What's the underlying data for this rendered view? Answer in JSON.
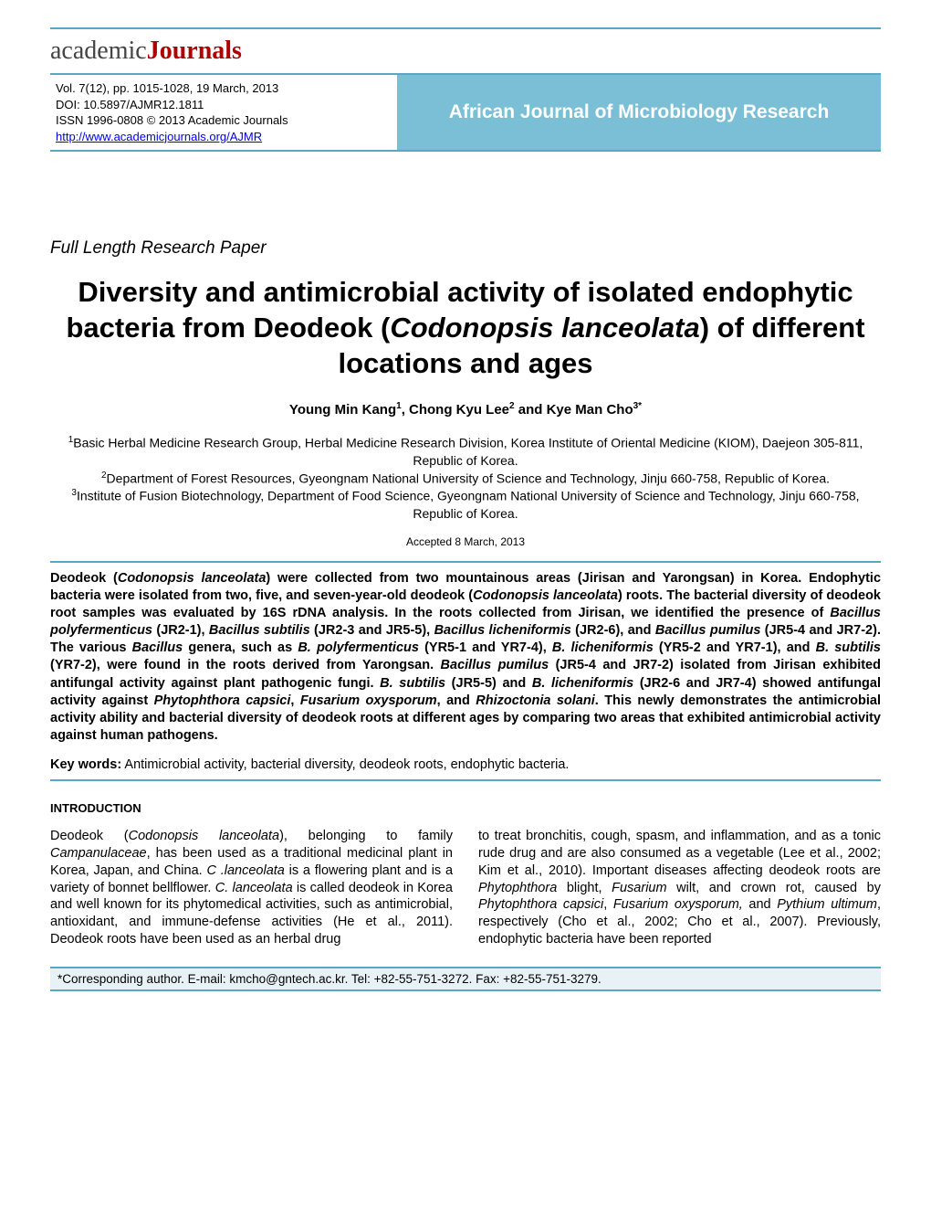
{
  "logo": {
    "part1": "academic",
    "part2": "Journals"
  },
  "header": {
    "vol": "Vol. 7(12), pp. 1015-1028, 19 March, 2013",
    "doi": "DOI: 10.5897/AJMR12.1811",
    "issn": "ISSN 1996-0808 © 2013 Academic Journals",
    "url": "http://www.academicjournals.org/AJMR",
    "journal": "African Journal of Microbiology Research"
  },
  "paper_type": "Full Length Research Paper",
  "title_p1": "Diversity and antimicrobial activity of isolated endophytic bacteria from Deodeok (",
  "title_sci": "Codonopsis lanceolata",
  "title_p2": ") of different locations and ages",
  "authors_html": "Young Min Kang<sup>1</sup>, Chong Kyu Lee<sup>2</sup> and Kye Man Cho<sup>3*</sup>",
  "affils_html": "<sup>1</sup>Basic Herbal Medicine Research Group, Herbal Medicine Research Division, Korea Institute of Oriental Medicine (KIOM), Daejeon 305-811, Republic of Korea.<br><sup>2</sup>Department of Forest Resources, Gyeongnam National University of Science and Technology, Jinju 660-758, Republic of Korea.<br><sup>3</sup>Institute of Fusion Biotechnology, Department of Food Science, Gyeongnam National University of Science and Technology, Jinju 660-758, Republic of Korea.",
  "accepted": "Accepted 8 March, 2013",
  "abstract_html": "Deodeok (<span class=\"sci\">Codonopsis lanceolata</span>) were collected from two mountainous areas (Jirisan and Yarongsan) in Korea. Endophytic bacteria were isolated from two, five, and seven-year-old deodeok (<span class=\"sci\">Codonopsis lanceolata</span>) roots. The bacterial diversity of deodeok root samples was evaluated by 16S rDNA analysis. In the roots collected from Jirisan, we identified the presence of <span class=\"sci\">Bacillus polyfermenticus</span> (JR2-1), <span class=\"sci\">Bacillus subtilis</span> (JR2-3 and JR5-5), <span class=\"sci\">Bacillus licheniformis</span> (JR2-6), and <span class=\"sci\">Bacillus pumilus</span> (JR5-4 and JR7-2). The various <span class=\"sci\">Bacillus</span> genera, such as <span class=\"sci\">B. polyfermenticus</span> (YR5-1 and YR7-4), <span class=\"sci\">B. licheniformis</span> (YR5-2 and YR7-1), and <span class=\"sci\">B. subtilis</span> (YR7-2), were found in the roots derived from Yarongsan. <span class=\"sci\">Bacillus pumilus</span> (JR5-4 and JR7-2) isolated from Jirisan exhibited antifungal activity against plant pathogenic fungi. <span class=\"sci\">B. subtilis</span> (JR5-5) and <span class=\"sci\">B. licheniformis</span> (JR2-6 and JR7-4) showed antifungal activity against <span class=\"sci\">Phytophthora capsici</span>, <span class=\"sci\">Fusarium oxysporum</span>, and <span class=\"sci\">Rhizoctonia solani</span>. This newly demonstrates the antimicrobial activity ability and bacterial diversity of deodeok roots at different ages by comparing two areas that exhibited antimicrobial activity against human pathogens.",
  "keywords_label": "Key words:",
  "keywords_text": " Antimicrobial activity, bacterial diversity, deodeok roots, endophytic bacteria.",
  "intro_head": "INTRODUCTION",
  "col1_html": "Deodeok (<span class=\"sci\">Codonopsis lanceolata</span>), belonging to family <span class=\"sci\">Campanulaceae</span>, has been used as a traditional medicinal plant in Korea, Japan, and China. <span class=\"sci\">C .lanceolata</span> is a flowering plant and is a variety of bonnet bellflower. <span class=\"sci\">C. lanceolata</span> is called deodeok in Korea and well known for its phytomedical activities, such as antimicrobial, antioxidant, and immune-defense activities (He et al., 2011). Deodeok roots have been used as an herbal drug",
  "col2_html": "to treat bronchitis, cough, spasm, and inflammation, and as a tonic rude drug and are also consumed as a vegetable (Lee et al., 2002; Kim et al., 2010). Important diseases affecting deodeok roots are <span class=\"sci\">Phytophthora</span> blight, <span class=\"sci\">Fusarium</span> wilt, and crown rot, caused by <span class=\"sci\">Phytophthora capsici</span>, <span class=\"sci\">Fusarium oxysporum,</span> and <span class=\"sci\">Pythium ultimum</span>, respectively (Cho et al., 2002; Cho et al., 2007). Previously, endophytic bacteria have been reported",
  "footer": "*Corresponding author. E-mail: kmcho@gntech.ac.kr. Tel: +82-55-751-3272. Fax: +82-55-751-3279.",
  "colors": {
    "accent": "#5aa7c4",
    "header_bg": "#7bbfd6",
    "logo_red": "#b00000",
    "footer_bg": "#e8f2f6"
  }
}
